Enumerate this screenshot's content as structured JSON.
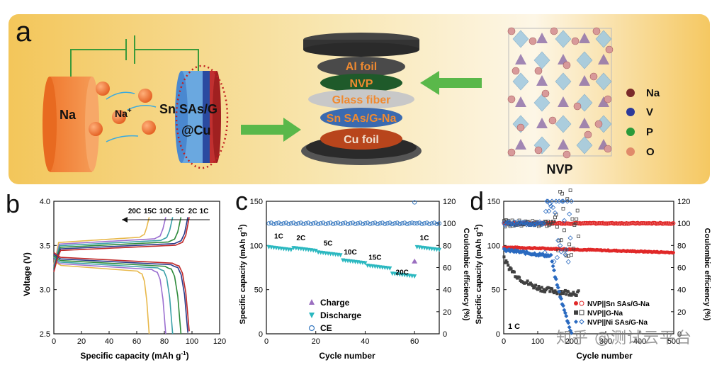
{
  "panel_a": {
    "letter": "a",
    "na_label": "Na",
    "na_ion": "Na",
    "na_ion_sup": "+",
    "anode_label_1": "Sn SAs/G",
    "anode_label_2": "@Cu",
    "stack_layers": [
      "Al foil",
      "NVP",
      "Glass fiber",
      "Sn SAs/G-Na",
      "Cu foil"
    ],
    "legend": [
      {
        "label": "Na",
        "color": "#7a2a2a"
      },
      {
        "label": "V",
        "color": "#2d3a9a"
      },
      {
        "label": "P",
        "color": "#2a9a3a"
      },
      {
        "label": "O",
        "color": "#e08a6a"
      }
    ],
    "crystal_label": "NVP"
  },
  "chart_data": [
    {
      "panel": "b",
      "type": "line",
      "xlabel": "Specific capacity (mAh g",
      "xlabel_sup": "-1",
      "xlabel_end": ")",
      "ylabel": "Voltage (V)",
      "xlim": [
        0,
        120
      ],
      "ylim": [
        2.5,
        4.0
      ],
      "xticks": [
        0,
        20,
        40,
        60,
        80,
        100,
        120
      ],
      "yticks": [
        2.5,
        3.0,
        3.5,
        4.0
      ],
      "rate_labels": [
        "20C",
        "15C",
        "10C",
        "5C",
        "2C",
        "1C"
      ],
      "series": [
        {
          "name": "20C",
          "color": "#e8b84a",
          "cap": 69
        },
        {
          "name": "15C",
          "color": "#9b6fd0",
          "cap": 81
        },
        {
          "name": "10C",
          "color": "#3aa0a8",
          "cap": 86
        },
        {
          "name": "5C",
          "color": "#2d8a3a",
          "cap": 92
        },
        {
          "name": "2C",
          "color": "#2a3a8a",
          "cap": 97
        },
        {
          "name": "1C",
          "color": "#c02828",
          "cap": 98
        }
      ]
    },
    {
      "panel": "c",
      "type": "scatter",
      "xlabel": "Cycle number",
      "ylabel": "Specific capacity (mAh g",
      "ylabel_sup": "-1",
      "ylabel_end": ")",
      "y2label": "Coulombic efficiency (%)",
      "xlim": [
        0,
        70
      ],
      "ylim": [
        0,
        150
      ],
      "y2lim": [
        0,
        120
      ],
      "xticks": [
        0,
        20,
        40,
        60
      ],
      "yticks": [
        0,
        50,
        100,
        150
      ],
      "y2ticks": [
        0,
        20,
        40,
        60,
        80,
        100,
        120
      ],
      "rate_labels": [
        {
          "text": "1C",
          "x": 5,
          "y": 108
        },
        {
          "text": "2C",
          "x": 14,
          "y": 106
        },
        {
          "text": "5C",
          "x": 25,
          "y": 100
        },
        {
          "text": "10C",
          "x": 34,
          "y": 90
        },
        {
          "text": "15C",
          "x": 44,
          "y": 84
        },
        {
          "text": "20C",
          "x": 55,
          "y": 67
        },
        {
          "text": "1C",
          "x": 64,
          "y": 106
        }
      ],
      "segments": [
        {
          "from": 1,
          "to": 10,
          "value": 98
        },
        {
          "from": 11,
          "to": 20,
          "value": 97
        },
        {
          "from": 21,
          "to": 30,
          "value": 92
        },
        {
          "from": 31,
          "to": 40,
          "value": 83
        },
        {
          "from": 41,
          "to": 50,
          "value": 77
        },
        {
          "from": 51,
          "to": 60,
          "value": 68
        },
        {
          "from": 61,
          "to": 70,
          "value": 98
        }
      ],
      "charge_point": {
        "x": 60,
        "value": 82
      },
      "ce_value": 100,
      "ce_outlier": {
        "x": 60,
        "value": 119
      },
      "legend": [
        "Charge",
        "Discharge",
        "CE"
      ],
      "colors": {
        "charge": "#9b6fc0",
        "discharge": "#2bb8c0",
        "ce": "#3a7ac0"
      }
    },
    {
      "panel": "d",
      "type": "scatter",
      "xlabel": "Cycle number",
      "ylabel": "Specific capacity (mAh g",
      "ylabel_sup": "-1",
      "ylabel_end": ")",
      "y2label": "Coulombic efficiency (%)",
      "xlim": [
        0,
        500
      ],
      "ylim": [
        0,
        150
      ],
      "y2lim": [
        0,
        120
      ],
      "xticks": [
        0,
        100,
        200,
        300,
        400,
        500
      ],
      "yticks": [
        0,
        50,
        100,
        150
      ],
      "y2ticks": [
        0,
        20,
        40,
        60,
        80,
        100,
        120
      ],
      "rate_note": "1 C",
      "legend": [
        "NVP||Sn SAs/G-Na",
        "NVP||G-Na",
        "NVP||Ni SAs/G-Na"
      ],
      "colors": {
        "sn": "#e02828",
        "g": "#404040",
        "ni": "#2a6ac0"
      }
    }
  ],
  "watermark": "知乎 @测试云平台"
}
